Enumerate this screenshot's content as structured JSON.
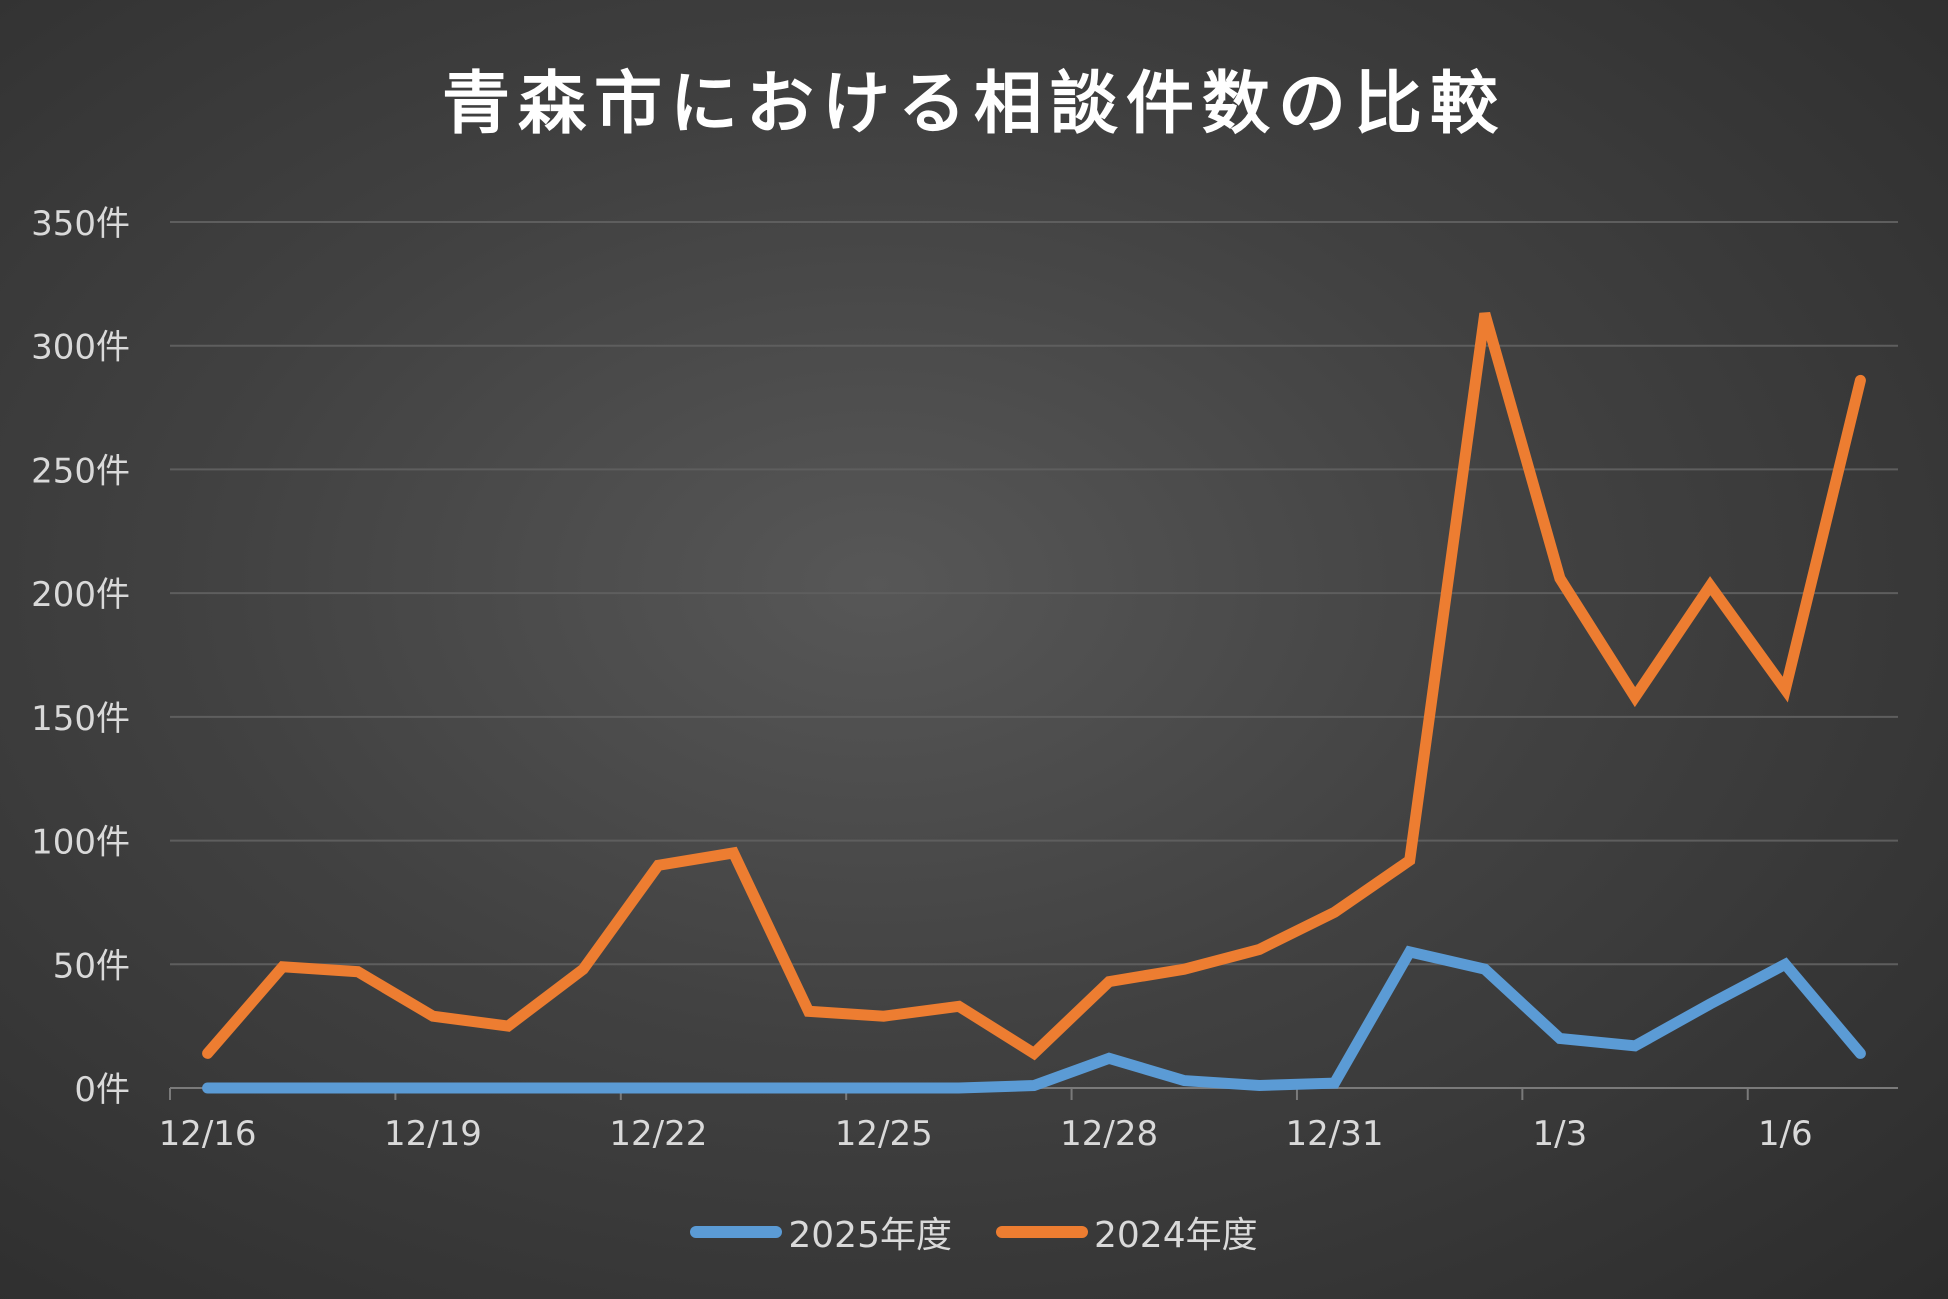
{
  "chart_data": {
    "type": "line",
    "title": "青森市における相談件数の比較",
    "xlabel": "",
    "ylabel": "",
    "ylim": [
      0,
      350
    ],
    "yticks": [
      "0件",
      "50件",
      "100件",
      "150件",
      "200件",
      "250件",
      "300件",
      "350件"
    ],
    "x": [
      "12/16",
      "12/17",
      "12/18",
      "12/19",
      "12/20",
      "12/21",
      "12/22",
      "12/23",
      "12/24",
      "12/25",
      "12/26",
      "12/27",
      "12/28",
      "12/29",
      "12/30",
      "12/31",
      "1/1",
      "1/2",
      "1/3",
      "1/4",
      "1/5",
      "1/6",
      "1/7"
    ],
    "xtick_labels": [
      "12/16",
      "12/19",
      "12/22",
      "12/25",
      "12/28",
      "12/31",
      "1/3",
      "1/6"
    ],
    "series": [
      {
        "name": "2025年度",
        "color": "#5b9bd5",
        "values": [
          0,
          0,
          0,
          0,
          0,
          0,
          0,
          0,
          0,
          0,
          0,
          1,
          12,
          3,
          1,
          2,
          55,
          48,
          20,
          17,
          34,
          50,
          14
        ]
      },
      {
        "name": "2024年度",
        "color": "#ed7d31",
        "values": [
          14,
          49,
          47,
          29,
          25,
          48,
          90,
          95,
          31,
          29,
          33,
          14,
          43,
          48,
          56,
          71,
          92,
          313,
          206,
          158,
          203,
          161,
          286
        ]
      }
    ],
    "grid": true,
    "legend_position": "bottom"
  }
}
